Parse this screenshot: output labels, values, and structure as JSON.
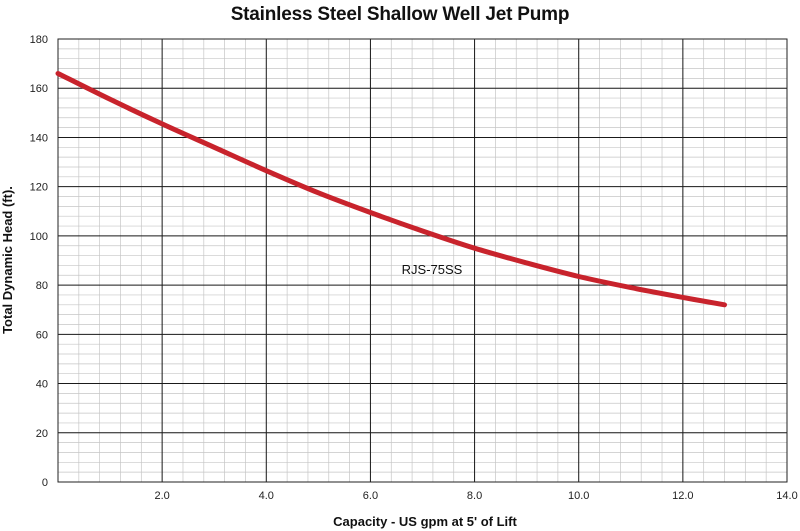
{
  "chart_data": {
    "type": "line",
    "title": "Stainless Steel Shallow Well Jet Pump",
    "xlabel": "Capacity - US gpm at 5' of Lift",
    "ylabel": "Total Dynamic Head (ft).",
    "xlim": [
      0,
      14
    ],
    "ylim": [
      0,
      180
    ],
    "x_ticks": [
      "2.0",
      "4.0",
      "6.0",
      "8.0",
      "10.0",
      "12.0",
      "14.0"
    ],
    "y_ticks": [
      "0",
      "20",
      "40",
      "60",
      "80",
      "100",
      "120",
      "140",
      "160",
      "180"
    ],
    "grid": true,
    "series": [
      {
        "name": "RJS-75SS",
        "color": "#c8232c",
        "x": [
          0,
          1,
          2,
          3,
          4,
          5,
          6,
          7,
          8,
          9,
          10,
          11,
          12,
          12.8
        ],
        "y": [
          166,
          155.5,
          145.5,
          136,
          126.5,
          117.5,
          109.5,
          102,
          95,
          89,
          83.5,
          79,
          75,
          72
        ]
      }
    ]
  }
}
